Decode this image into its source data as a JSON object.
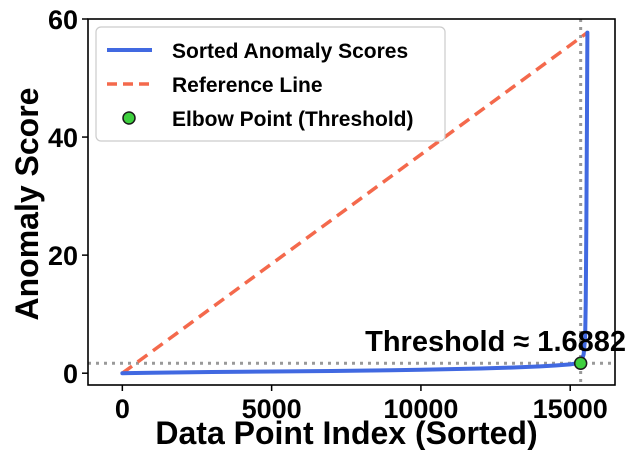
{
  "chart_data": {
    "type": "line",
    "title": "",
    "xlabel": "Data Point Index (Sorted)",
    "ylabel": "Anomaly Score",
    "xlim": [
      -1150,
      16500
    ],
    "ylim": [
      -2,
      60
    ],
    "x_ticks": [
      0,
      5000,
      10000,
      15000
    ],
    "y_ticks": [
      0,
      20,
      40,
      60
    ],
    "x_tick_labels": [
      "0",
      "5000",
      "10000",
      "15000"
    ],
    "y_tick_labels": [
      "0",
      "20",
      "40",
      "60"
    ],
    "grid": false,
    "legend": {
      "position": "top-left",
      "entries": [
        {
          "label": "Sorted Anomaly Scores",
          "style": "solid-line",
          "color": "#4169e1"
        },
        {
          "label": "Reference Line",
          "style": "dashed-line",
          "color": "#f4694c"
        },
        {
          "label": "Elbow Point (Threshold)",
          "style": "marker",
          "color": "#3ecf3e"
        }
      ]
    },
    "series": [
      {
        "name": "Sorted Anomaly Scores",
        "type": "line",
        "color": "#4169e1",
        "x": [
          0,
          1000,
          2000,
          3000,
          4000,
          5000,
          6000,
          7000,
          8000,
          9000,
          10000,
          11000,
          12000,
          13000,
          14000,
          14500,
          15000,
          15200,
          15300,
          15400,
          15450,
          15500,
          15520,
          15540,
          15560,
          15575
        ],
        "y": [
          0,
          0.08,
          0.14,
          0.2,
          0.24,
          0.28,
          0.33,
          0.38,
          0.43,
          0.5,
          0.58,
          0.68,
          0.8,
          0.95,
          1.15,
          1.3,
          1.5,
          1.65,
          1.9,
          2.4,
          3.2,
          6.0,
          12.0,
          25.0,
          42.0,
          57.7
        ]
      },
      {
        "name": "Reference Line",
        "type": "dashed-line",
        "color": "#f4694c",
        "x": [
          0,
          15575
        ],
        "y": [
          0,
          57.7
        ]
      },
      {
        "name": "Elbow Point (Threshold)",
        "type": "scatter",
        "color": "#3ecf3e",
        "x": [
          15350
        ],
        "y": [
          1.6882
        ]
      }
    ],
    "reference_lines": [
      {
        "orientation": "horizontal",
        "value": 1.6882,
        "color": "#999999",
        "style": "dotted"
      },
      {
        "orientation": "vertical",
        "value": 15350,
        "color": "#999999",
        "style": "dotted"
      }
    ],
    "annotation": {
      "text": "Threshold ≈ 1.6882",
      "x": 12500,
      "y": 3.8
    }
  }
}
